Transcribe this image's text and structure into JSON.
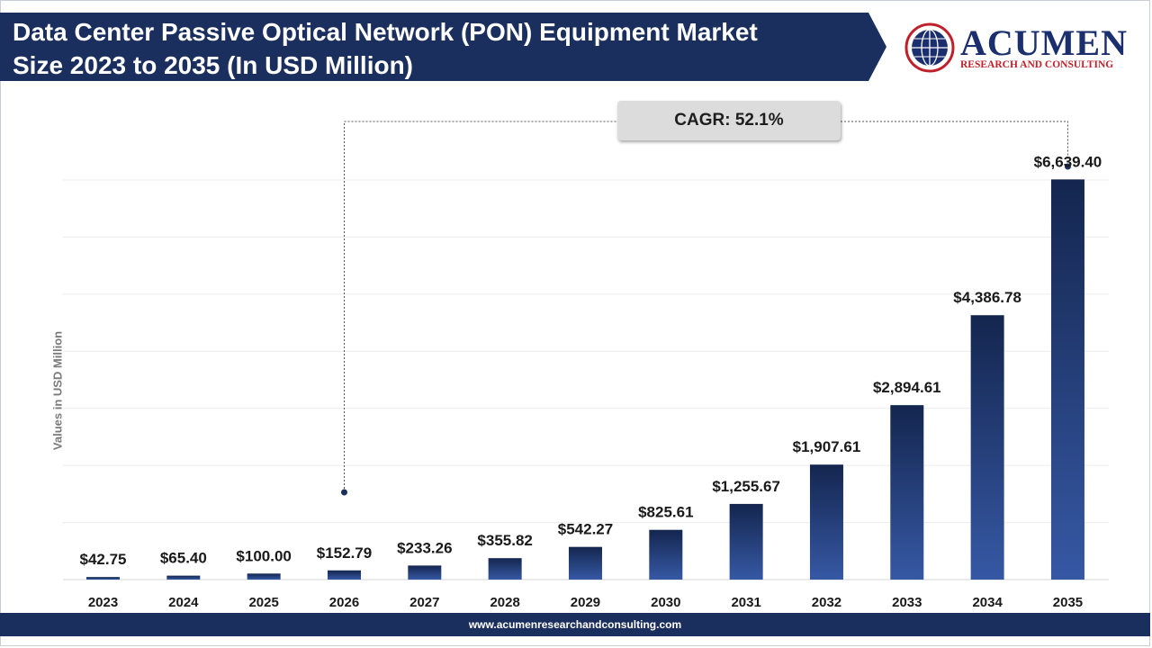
{
  "header": {
    "title_line1": "Data Center Passive Optical Network (PON) Equipment Market",
    "title_line2": "Size 2023 to 2035 (In USD Million)"
  },
  "logo": {
    "name": "ACUMEN",
    "tagline": "RESEARCH AND CONSULTING"
  },
  "annotation": {
    "cagr": "CAGR: 52.1%"
  },
  "footer": {
    "url": "www.acumenresearchandconsulting.com"
  },
  "colors": {
    "title_band": "#1b2f5e",
    "bar_dark": "#14264f",
    "bar_light": "#3658a4",
    "footer": "#1b2f5e",
    "logo_blue": "#1b2f6e",
    "logo_red": "#c0202a"
  },
  "chart_data": {
    "type": "bar",
    "title": "Data Center Passive Optical Network (PON) Equipment Market Size 2023 to 2035 (In USD Million)",
    "xlabel": "",
    "ylabel": "Values in USD Million",
    "categories": [
      "2023",
      "2024",
      "2025",
      "2026",
      "2027",
      "2028",
      "2029",
      "2030",
      "2031",
      "2032",
      "2033",
      "2034",
      "2035"
    ],
    "values": [
      42.75,
      65.4,
      100.0,
      152.79,
      233.26,
      355.82,
      542.27,
      825.61,
      1255.67,
      1907.61,
      2894.61,
      4386.78,
      6639.4
    ],
    "value_labels": [
      "$42.75",
      "$65.40",
      "$100.00",
      "$152.79",
      "$233.26",
      "$355.82",
      "$542.27",
      "$825.61",
      "$1,255.67",
      "$1,907.61",
      "$2,894.61",
      "$4,386.78",
      "$6,639.40"
    ],
    "ylim": [
      0,
      7000
    ],
    "grid": true,
    "legend": "none"
  }
}
